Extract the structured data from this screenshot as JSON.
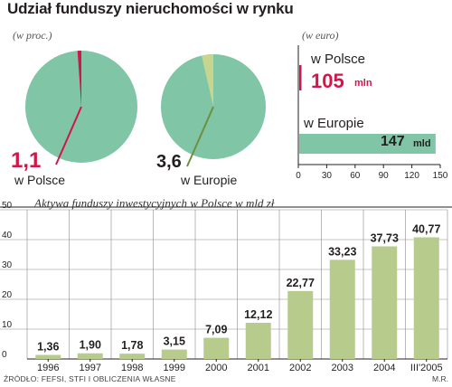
{
  "title": "Udział funduszy nieruchomości w rynku",
  "pies": {
    "unit_label": "(w proc.)",
    "poland": {
      "value_text": "1,1",
      "value": 1.1,
      "label": "w Polsce"
    },
    "europe": {
      "value_text": "3,6",
      "value": 3.6,
      "label": "w Europie"
    }
  },
  "bars": {
    "unit_label": "(w euro)",
    "poland": {
      "label": "w Polsce",
      "value_text": "105",
      "unit": "mln",
      "value_mld": 0.105
    },
    "europe": {
      "label": "w Europie",
      "value_text": "147",
      "unit": "mld",
      "value_mld": 147
    },
    "xticks": [
      0,
      30,
      60,
      90,
      120,
      150
    ]
  },
  "chart_data": {
    "type": "bar",
    "title": "Aktywa funduszy inwestycyjnych w Polsce w mld zł",
    "categories": [
      "1996",
      "1997",
      "1998",
      "1999",
      "2000",
      "2001",
      "2002",
      "2003",
      "2004",
      "III'2005"
    ],
    "values": [
      1.36,
      1.9,
      1.78,
      3.15,
      7.09,
      12.12,
      22.77,
      33.23,
      37.73,
      40.77
    ],
    "labels": [
      "1,36",
      "1,90",
      "1,78",
      "3,15",
      "7,09",
      "12,12",
      "22,77",
      "33,23",
      "37,73",
      "40,77"
    ],
    "ylim": [
      0,
      50
    ],
    "yticks": [
      0,
      10,
      20,
      30,
      40,
      50
    ],
    "grid": true
  },
  "colors": {
    "pie_fill": "#7fc5a6",
    "bar_fill": "#b7cb8d",
    "accent": "#d0164a",
    "wedge_eu": "#c7d68f"
  },
  "source": "ŹRÓDŁO: FEFSI, STFI I OBLICZENIA WŁASNE",
  "author": "M.R."
}
